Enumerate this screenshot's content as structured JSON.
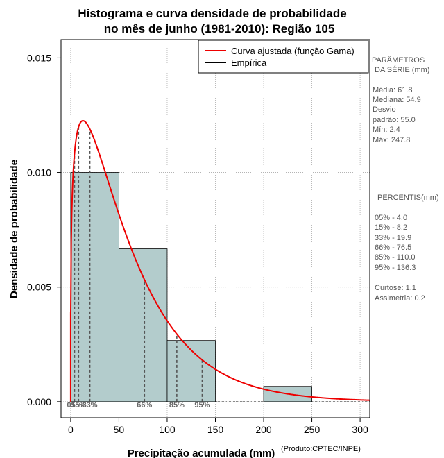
{
  "chart_data": {
    "type": "histogram",
    "title_line1": "Histograma e curva densidade de probabilidade",
    "title_line2": "no mês de junho (1981-2010): Região 105",
    "xlabel": "Precipitação acumulada (mm)",
    "ylabel": "Densidade de probabilidade",
    "credit": "(Produto:CPTEC/INPE)",
    "xlim": [
      -10,
      310
    ],
    "ylim": [
      -0.0007,
      0.0158
    ],
    "x_ticks": [
      0,
      50,
      100,
      150,
      200,
      250,
      300
    ],
    "y_ticks": [
      0.0,
      0.005,
      0.01,
      0.015
    ],
    "y_tick_labels": [
      "0.000",
      "0.005",
      "0.010",
      "0.015"
    ],
    "grid": true,
    "bins": [
      {
        "start": 0,
        "end": 50,
        "density": 0.01
      },
      {
        "start": 50,
        "end": 100,
        "density": 0.00667
      },
      {
        "start": 100,
        "end": 150,
        "density": 0.00267
      },
      {
        "start": 150,
        "end": 200,
        "density": 0.0
      },
      {
        "start": 200,
        "end": 250,
        "density": 0.00067
      }
    ],
    "fitted_curve": {
      "name": "Curva ajustada (função Gama)",
      "shape": 1.26,
      "scale": 49.0,
      "color": "#ee0000"
    },
    "legend": [
      {
        "label": "Curva ajustada (função Gama)",
        "color": "#ee0000"
      },
      {
        "label": "Empírica",
        "color": "#000000"
      }
    ],
    "percentile_markers": [
      {
        "label": "05%",
        "value": 4.0
      },
      {
        "label": "15%",
        "value": 8.2
      },
      {
        "label": "33%",
        "value": 19.9
      },
      {
        "label": "66%",
        "value": 76.5
      },
      {
        "label": "85%",
        "value": 110.0
      },
      {
        "label": "95%",
        "value": 136.3
      }
    ]
  },
  "side_panel": {
    "params_title_1": "PARÂMETROS",
    "params_title_2": "DA SÉRIE (mm)",
    "media": "Média:  61.8",
    "mediana": "Mediana:  54.9",
    "desvio_1": "Desvio",
    "desvio_2": "padrão:  55.0",
    "min": "Mín:  2.4",
    "max": "Máx:  247.8",
    "percentis_title": "PERCENTIS(mm)",
    "p05": "05% -  4.0",
    "p15": "15% -  8.2",
    "p33": "33% -  19.9",
    "p66": "66% -  76.5",
    "p85": "85% -  110.0",
    "p95": "95% -  136.3",
    "curtose": "Curtose:  1.1",
    "assimetria": "Assimetria:  0.2"
  },
  "colors": {
    "bar_fill": "#b3cccc",
    "grid": "#aaaaaa",
    "curve": "#ee0000",
    "marker": "#555555"
  }
}
